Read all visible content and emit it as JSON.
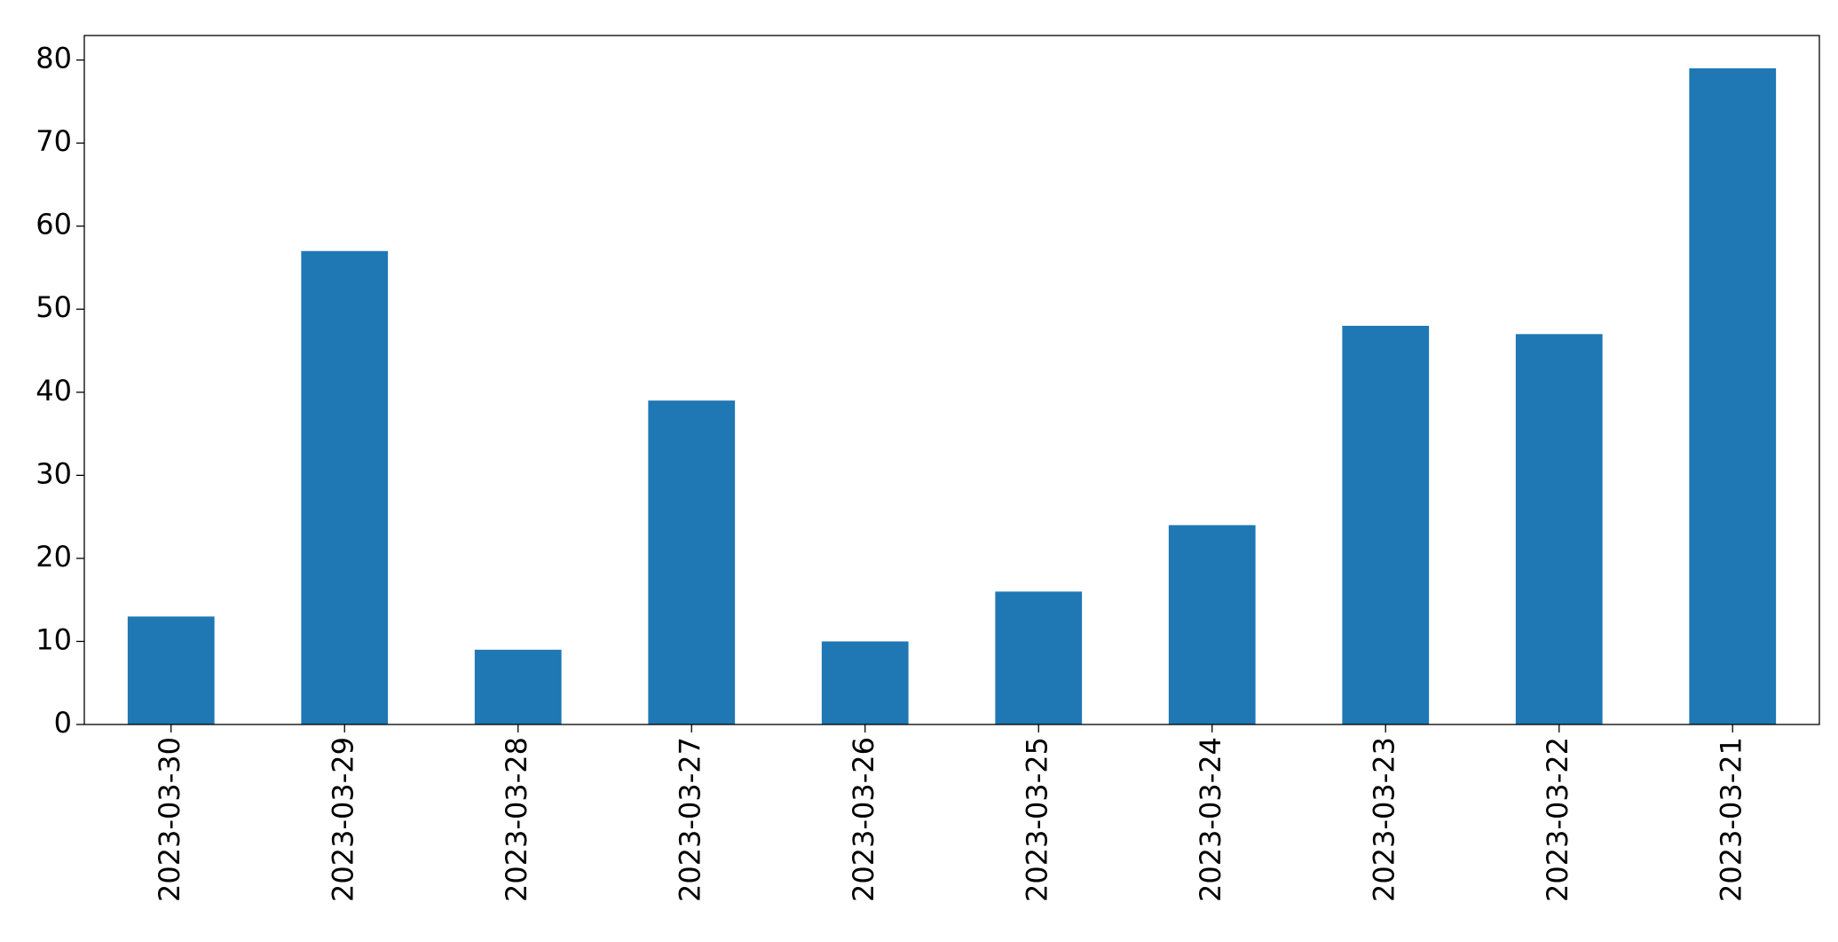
{
  "chart_data": {
    "type": "bar",
    "categories": [
      "2023-03-30",
      "2023-03-29",
      "2023-03-28",
      "2023-03-27",
      "2023-03-26",
      "2023-03-25",
      "2023-03-24",
      "2023-03-23",
      "2023-03-22",
      "2023-03-21"
    ],
    "values": [
      13,
      57,
      9,
      39,
      10,
      16,
      24,
      48,
      47,
      79
    ],
    "color": "#1f77b4",
    "ylim": [
      0,
      82.95
    ],
    "yticks": [
      0,
      10,
      20,
      30,
      40,
      50,
      60,
      70,
      80
    ],
    "grid": false
  }
}
